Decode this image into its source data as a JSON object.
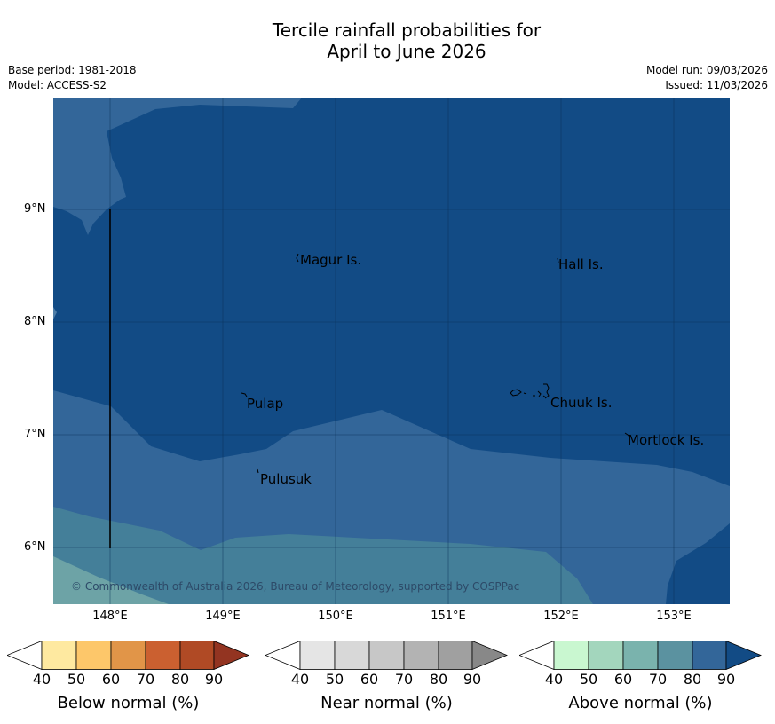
{
  "title_line1": "Tercile rainfall probabilities for",
  "title_line2": "April to June 2026",
  "meta": {
    "base_period": "Base period: 1981-2018",
    "model": "Model: ACCESS-S2",
    "model_run": "Model run: 09/03/2026",
    "issued": "Issued: 11/03/2026"
  },
  "axes": {
    "lat_labels": [
      "9°N",
      "8°N",
      "7°N",
      "6°N"
    ],
    "lon_labels": [
      "148°E",
      "149°E",
      "150°E",
      "151°E",
      "152°E",
      "153°E"
    ]
  },
  "places": {
    "magur": "Magur Is.",
    "hall": "Hall Is.",
    "pulap": "Pulap",
    "chuuk": "Chuuk Is.",
    "mortlock": "Mortlock Is.",
    "pulusuk": "Pulusuk"
  },
  "credit": "© Commonwealth of Australia 2026, Bureau of Meteorology, supported by COSPPac",
  "colorbars": {
    "ticks": [
      "40",
      "50",
      "60",
      "70",
      "80",
      "90"
    ],
    "below": {
      "label": "Below normal (%)",
      "colors": [
        "#ffffff",
        "#fee9a0",
        "#fdc76a",
        "#e19548",
        "#cb6030",
        "#b04a25",
        "#933421"
      ]
    },
    "near": {
      "label": "Near normal (%)",
      "colors": [
        "#ffffff",
        "#e5e5e5",
        "#d8d8d8",
        "#c7c7c7",
        "#b3b3b3",
        "#a0a0a0",
        "#888888"
      ]
    },
    "above": {
      "label": "Above normal (%)",
      "colors": [
        "#ffffff",
        "#c9f7d0",
        "#a3d6bd",
        "#7ab3ad",
        "#5b92a0",
        "#336699",
        "#124b85"
      ]
    }
  },
  "map_colors": {
    "dark_blue": "#124b85",
    "mid_blue": "#336699",
    "teal": "#447f99",
    "light_teal": "#6da3a6"
  }
}
